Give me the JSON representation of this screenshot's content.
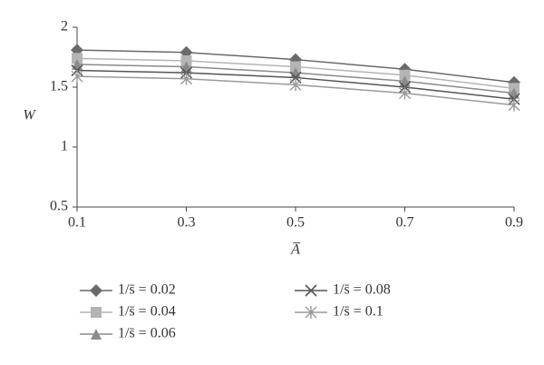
{
  "chart_data": {
    "type": "line",
    "x_label": "A̅",
    "y_label": "W",
    "x": [
      0.1,
      0.3,
      0.5,
      0.7,
      0.9
    ],
    "xlim": [
      0.1,
      0.9
    ],
    "xticks": [
      0.1,
      0.3,
      0.5,
      0.7,
      0.9
    ],
    "ylim": [
      0.5,
      2
    ],
    "yticks": [
      0.5,
      1,
      1.5,
      2
    ],
    "grid": false,
    "series": [
      {
        "name": "1/s̄ = 0.02",
        "color": "#6a6a6a",
        "marker": "diamond",
        "values": [
          1.81,
          1.79,
          1.73,
          1.65,
          1.54
        ]
      },
      {
        "name": "1/s̄ = 0.04",
        "color": "#b4b4b4",
        "marker": "square",
        "values": [
          1.74,
          1.72,
          1.67,
          1.6,
          1.49
        ]
      },
      {
        "name": "1/s̄ = 0.06",
        "color": "#8a8a8a",
        "marker": "triangle",
        "values": [
          1.69,
          1.67,
          1.62,
          1.55,
          1.45
        ]
      },
      {
        "name": "1/s̄ = 0.08",
        "color": "#555555",
        "marker": "x",
        "values": [
          1.64,
          1.62,
          1.58,
          1.5,
          1.4
        ]
      },
      {
        "name": "1/s̄ = 0.1",
        "color": "#9a9a9a",
        "marker": "asterisk",
        "values": [
          1.59,
          1.57,
          1.52,
          1.45,
          1.35
        ]
      }
    ]
  }
}
